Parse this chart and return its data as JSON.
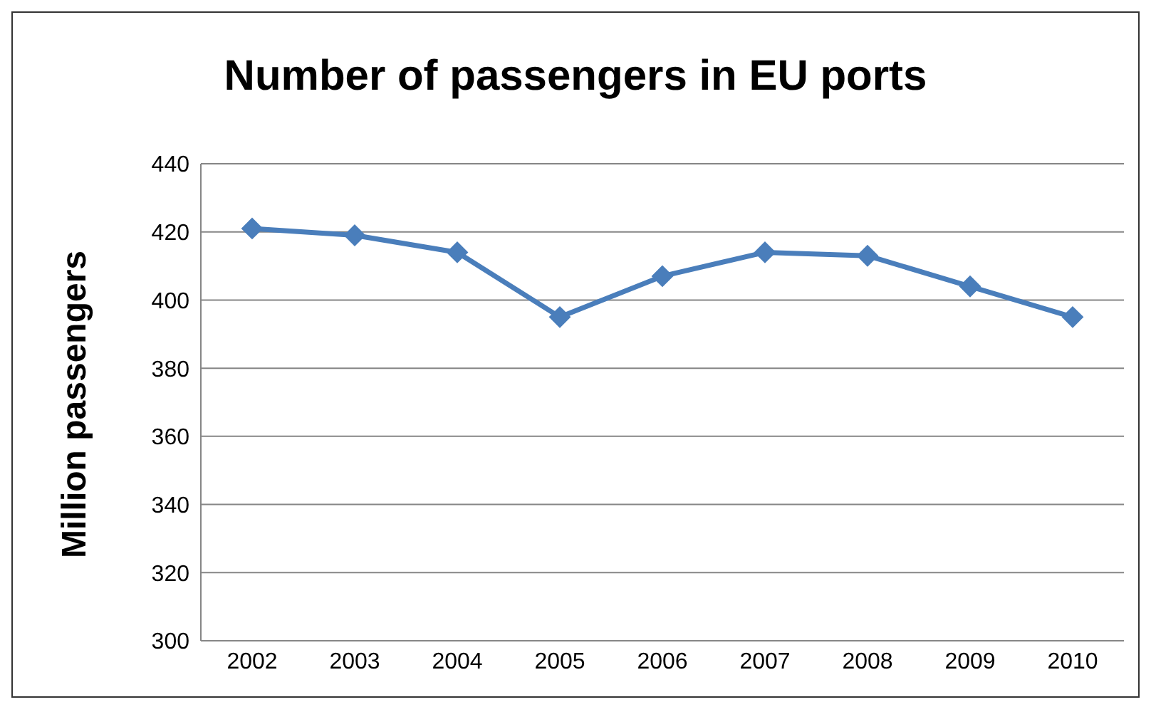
{
  "chart_data": {
    "type": "line",
    "title": "Number of passengers in EU ports",
    "ylabel": "Million passengers",
    "categories": [
      "2002",
      "2003",
      "2004",
      "2005",
      "2006",
      "2007",
      "2008",
      "2009",
      "2010"
    ],
    "series": [
      {
        "color": "#4a7ebb",
        "values": [
          421,
          419,
          414,
          395,
          407,
          414,
          413,
          404,
          395
        ]
      }
    ],
    "ylim": [
      300,
      440
    ],
    "yticks": [
      300,
      320,
      340,
      360,
      380,
      400,
      420,
      440
    ],
    "grid": "y",
    "marker": "diamond",
    "line_style": "solid"
  }
}
